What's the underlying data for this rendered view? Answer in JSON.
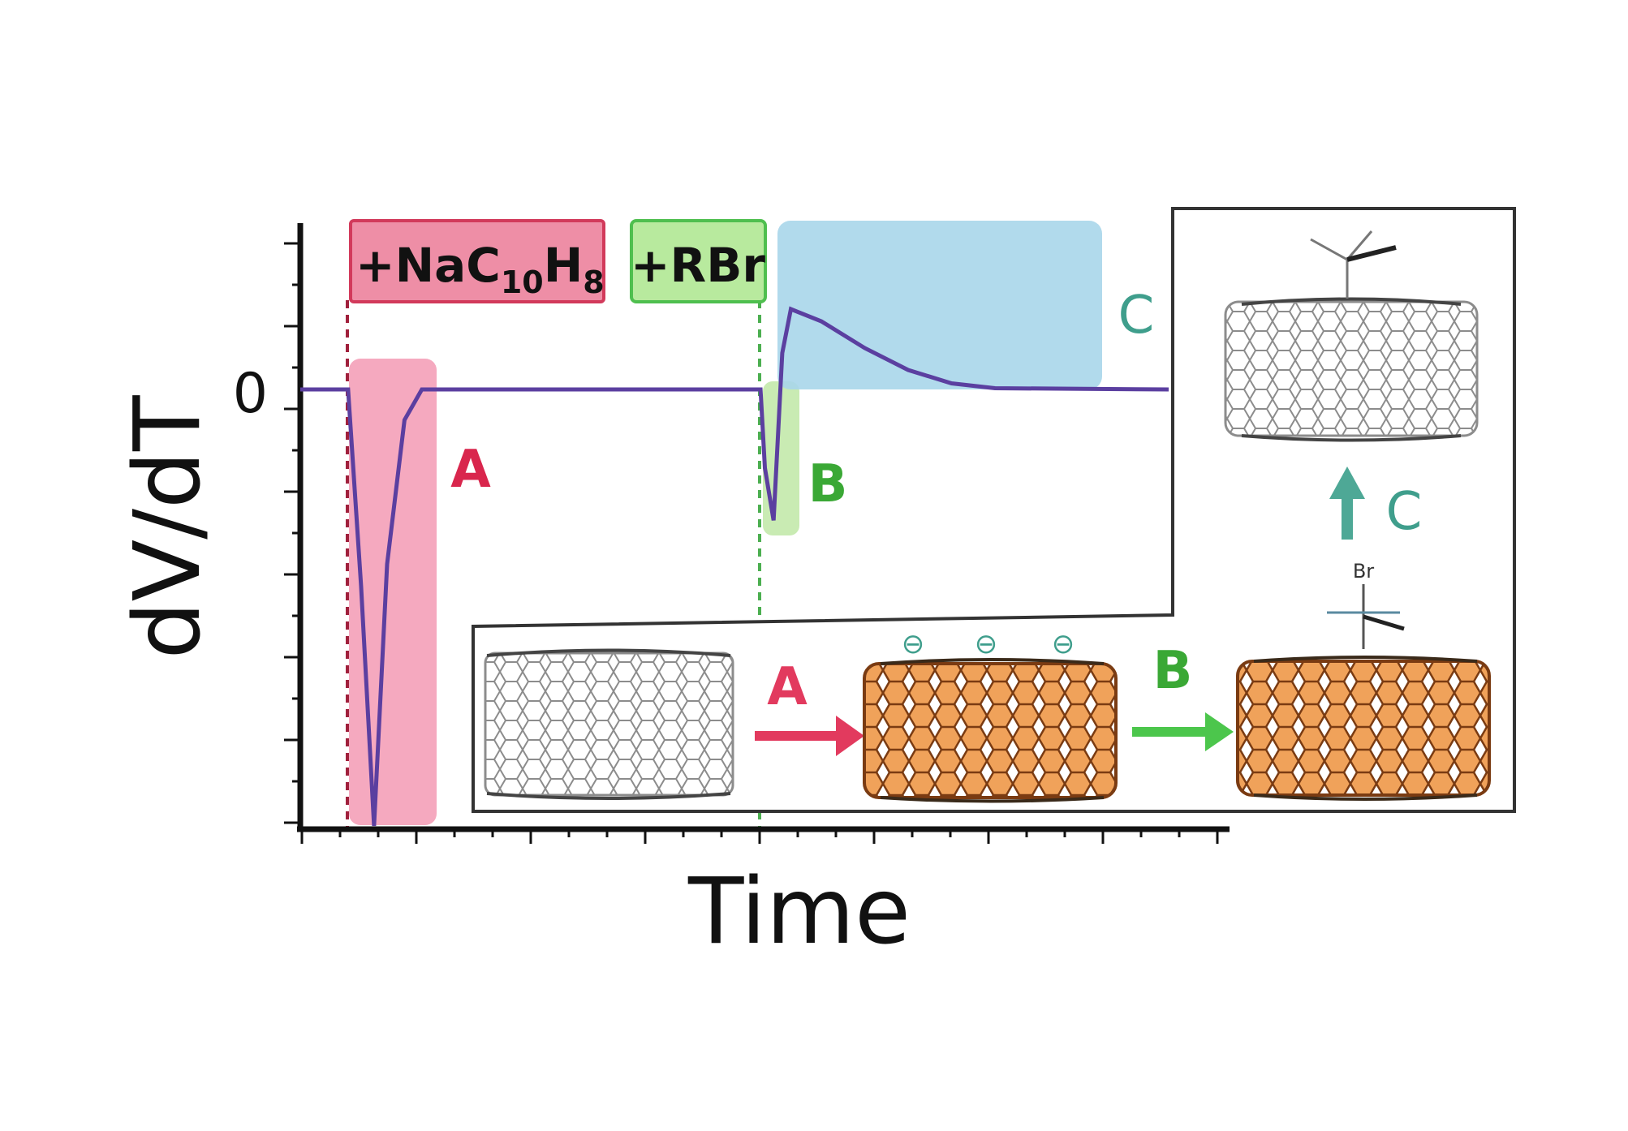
{
  "figure": {
    "y_axis_label": "dV/dT",
    "x_axis_label": "Time",
    "y_zero_label": "0",
    "reagent_1": {
      "prefix": "+NaC",
      "sub1": "10",
      "mid": "H",
      "sub2": "8"
    },
    "reagent_2": "+RBr",
    "region_labels": {
      "a": "A",
      "b": "B",
      "c": "C"
    },
    "scheme": {
      "arrow_a_label": "A",
      "arrow_b_label": "B",
      "arrow_c_label": "C",
      "charge_symbol": "⊖",
      "bromine_label": "Br"
    }
  },
  "colors": {
    "curve": "#5b3fa0",
    "region_a": "#f4a0b8",
    "region_b": "#bfe7a6",
    "region_c": "#a9d6ea",
    "label_a": "#d9264d",
    "label_b": "#3aa835",
    "label_c": "#3f9e8c",
    "tube_charged": "#f0a25a",
    "tube_neutral": "#8c8c8c"
  },
  "chart_data": {
    "type": "line",
    "xlabel": "Time",
    "ylabel": "dV/dT",
    "series": [
      {
        "values": [
          [
            0,
            0
          ],
          [
            0.055,
            0
          ],
          [
            0.07,
            -0.45
          ],
          [
            0.085,
            -1.0
          ],
          [
            0.1,
            -0.4
          ],
          [
            0.12,
            -0.07
          ],
          [
            0.14,
            0
          ],
          [
            0.53,
            0
          ],
          [
            0.535,
            -0.18
          ],
          [
            0.545,
            -0.3
          ],
          [
            0.555,
            0.15
          ],
          [
            0.565,
            0.33
          ],
          [
            0.6,
            0.28
          ],
          [
            0.65,
            0.17
          ],
          [
            0.7,
            0.08
          ],
          [
            0.75,
            0.025
          ],
          [
            0.8,
            0.005
          ],
          [
            1.0,
            0
          ]
        ]
      }
    ],
    "events": [
      "+NaC10H8",
      "+RBr"
    ],
    "regions": [
      "A",
      "B",
      "C"
    ],
    "grid": false
  }
}
